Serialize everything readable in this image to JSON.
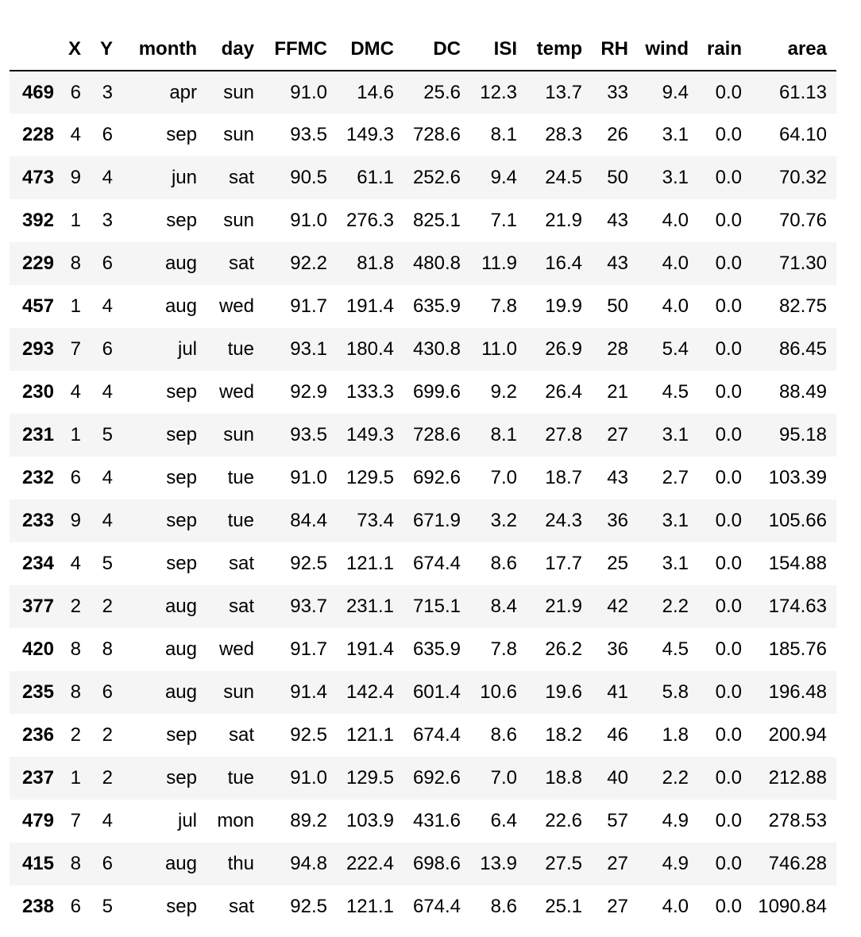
{
  "table": {
    "columns": [
      "",
      "X",
      "Y",
      "month",
      "day",
      "FFMC",
      "DMC",
      "DC",
      "ISI",
      "temp",
      "RH",
      "wind",
      "rain",
      "area"
    ],
    "rows": [
      {
        "index": "469",
        "cells": [
          "6",
          "3",
          "apr",
          "sun",
          "91.0",
          "14.6",
          "25.6",
          "12.3",
          "13.7",
          "33",
          "9.4",
          "0.0",
          "61.13"
        ]
      },
      {
        "index": "228",
        "cells": [
          "4",
          "6",
          "sep",
          "sun",
          "93.5",
          "149.3",
          "728.6",
          "8.1",
          "28.3",
          "26",
          "3.1",
          "0.0",
          "64.10"
        ]
      },
      {
        "index": "473",
        "cells": [
          "9",
          "4",
          "jun",
          "sat",
          "90.5",
          "61.1",
          "252.6",
          "9.4",
          "24.5",
          "50",
          "3.1",
          "0.0",
          "70.32"
        ]
      },
      {
        "index": "392",
        "cells": [
          "1",
          "3",
          "sep",
          "sun",
          "91.0",
          "276.3",
          "825.1",
          "7.1",
          "21.9",
          "43",
          "4.0",
          "0.0",
          "70.76"
        ]
      },
      {
        "index": "229",
        "cells": [
          "8",
          "6",
          "aug",
          "sat",
          "92.2",
          "81.8",
          "480.8",
          "11.9",
          "16.4",
          "43",
          "4.0",
          "0.0",
          "71.30"
        ]
      },
      {
        "index": "457",
        "cells": [
          "1",
          "4",
          "aug",
          "wed",
          "91.7",
          "191.4",
          "635.9",
          "7.8",
          "19.9",
          "50",
          "4.0",
          "0.0",
          "82.75"
        ]
      },
      {
        "index": "293",
        "cells": [
          "7",
          "6",
          "jul",
          "tue",
          "93.1",
          "180.4",
          "430.8",
          "11.0",
          "26.9",
          "28",
          "5.4",
          "0.0",
          "86.45"
        ]
      },
      {
        "index": "230",
        "cells": [
          "4",
          "4",
          "sep",
          "wed",
          "92.9",
          "133.3",
          "699.6",
          "9.2",
          "26.4",
          "21",
          "4.5",
          "0.0",
          "88.49"
        ]
      },
      {
        "index": "231",
        "cells": [
          "1",
          "5",
          "sep",
          "sun",
          "93.5",
          "149.3",
          "728.6",
          "8.1",
          "27.8",
          "27",
          "3.1",
          "0.0",
          "95.18"
        ]
      },
      {
        "index": "232",
        "cells": [
          "6",
          "4",
          "sep",
          "tue",
          "91.0",
          "129.5",
          "692.6",
          "7.0",
          "18.7",
          "43",
          "2.7",
          "0.0",
          "103.39"
        ]
      },
      {
        "index": "233",
        "cells": [
          "9",
          "4",
          "sep",
          "tue",
          "84.4",
          "73.4",
          "671.9",
          "3.2",
          "24.3",
          "36",
          "3.1",
          "0.0",
          "105.66"
        ]
      },
      {
        "index": "234",
        "cells": [
          "4",
          "5",
          "sep",
          "sat",
          "92.5",
          "121.1",
          "674.4",
          "8.6",
          "17.7",
          "25",
          "3.1",
          "0.0",
          "154.88"
        ]
      },
      {
        "index": "377",
        "cells": [
          "2",
          "2",
          "aug",
          "sat",
          "93.7",
          "231.1",
          "715.1",
          "8.4",
          "21.9",
          "42",
          "2.2",
          "0.0",
          "174.63"
        ]
      },
      {
        "index": "420",
        "cells": [
          "8",
          "8",
          "aug",
          "wed",
          "91.7",
          "191.4",
          "635.9",
          "7.8",
          "26.2",
          "36",
          "4.5",
          "0.0",
          "185.76"
        ]
      },
      {
        "index": "235",
        "cells": [
          "8",
          "6",
          "aug",
          "sun",
          "91.4",
          "142.4",
          "601.4",
          "10.6",
          "19.6",
          "41",
          "5.8",
          "0.0",
          "196.48"
        ]
      },
      {
        "index": "236",
        "cells": [
          "2",
          "2",
          "sep",
          "sat",
          "92.5",
          "121.1",
          "674.4",
          "8.6",
          "18.2",
          "46",
          "1.8",
          "0.0",
          "200.94"
        ]
      },
      {
        "index": "237",
        "cells": [
          "1",
          "2",
          "sep",
          "tue",
          "91.0",
          "129.5",
          "692.6",
          "7.0",
          "18.8",
          "40",
          "2.2",
          "0.0",
          "212.88"
        ]
      },
      {
        "index": "479",
        "cells": [
          "7",
          "4",
          "jul",
          "mon",
          "89.2",
          "103.9",
          "431.6",
          "6.4",
          "22.6",
          "57",
          "4.9",
          "0.0",
          "278.53"
        ]
      },
      {
        "index": "415",
        "cells": [
          "8",
          "6",
          "aug",
          "thu",
          "94.8",
          "222.4",
          "698.6",
          "13.9",
          "27.5",
          "27",
          "4.9",
          "0.0",
          "746.28"
        ]
      },
      {
        "index": "238",
        "cells": [
          "6",
          "5",
          "sep",
          "sat",
          "92.5",
          "121.1",
          "674.4",
          "8.6",
          "25.1",
          "27",
          "4.0",
          "0.0",
          "1090.84"
        ]
      }
    ]
  }
}
